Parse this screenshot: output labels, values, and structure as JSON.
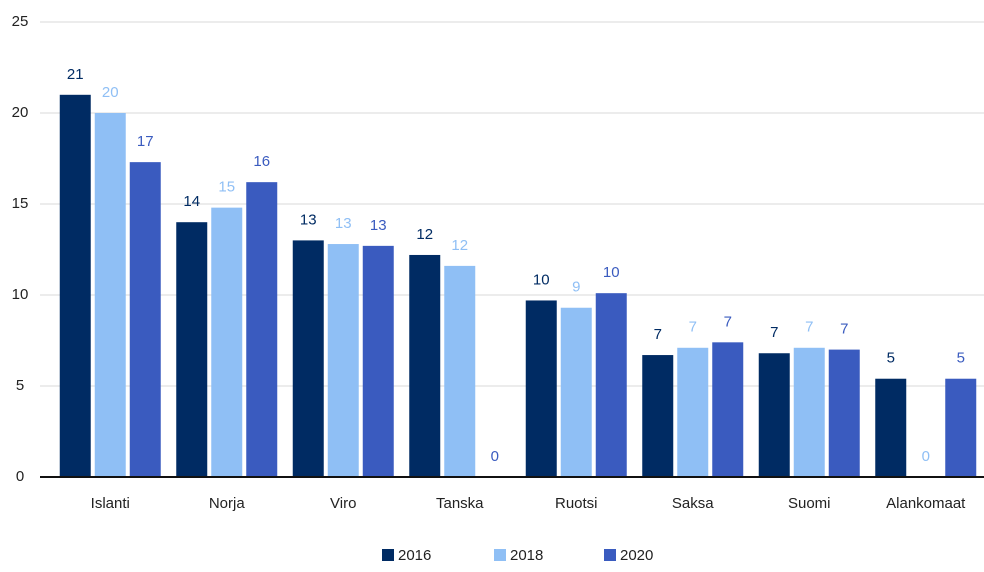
{
  "chart_data": {
    "type": "bar",
    "categories": [
      "Islanti",
      "Norja",
      "Viro",
      "Tanska",
      "Ruotsi",
      "Saksa",
      "Suomi",
      "Alankomaat"
    ],
    "series": [
      {
        "name": "2016",
        "color": "#002b63",
        "values": [
          21.0,
          14.0,
          13.0,
          12.2,
          9.7,
          6.7,
          6.8,
          5.4
        ],
        "value_labels": [
          "21",
          "14",
          "13",
          "12",
          "10",
          "7",
          "7",
          "5"
        ]
      },
      {
        "name": "2018",
        "color": "#8fbff5",
        "values": [
          20.0,
          14.8,
          12.8,
          11.6,
          9.3,
          7.1,
          7.1,
          0
        ],
        "value_labels": [
          "20",
          "15",
          "13",
          "12",
          "9",
          "7",
          "7",
          "0"
        ]
      },
      {
        "name": "2020",
        "color": "#3a5bbf",
        "values": [
          17.3,
          16.2,
          12.7,
          0,
          10.1,
          7.4,
          7.0,
          5.4
        ],
        "value_labels": [
          "17",
          "16",
          "13",
          "0",
          "10",
          "7",
          "7",
          "5"
        ]
      }
    ],
    "ylim": [
      0,
      25
    ],
    "yticks": [
      0,
      5,
      10,
      15,
      20,
      25
    ],
    "grid": true,
    "legend": "bottom"
  }
}
